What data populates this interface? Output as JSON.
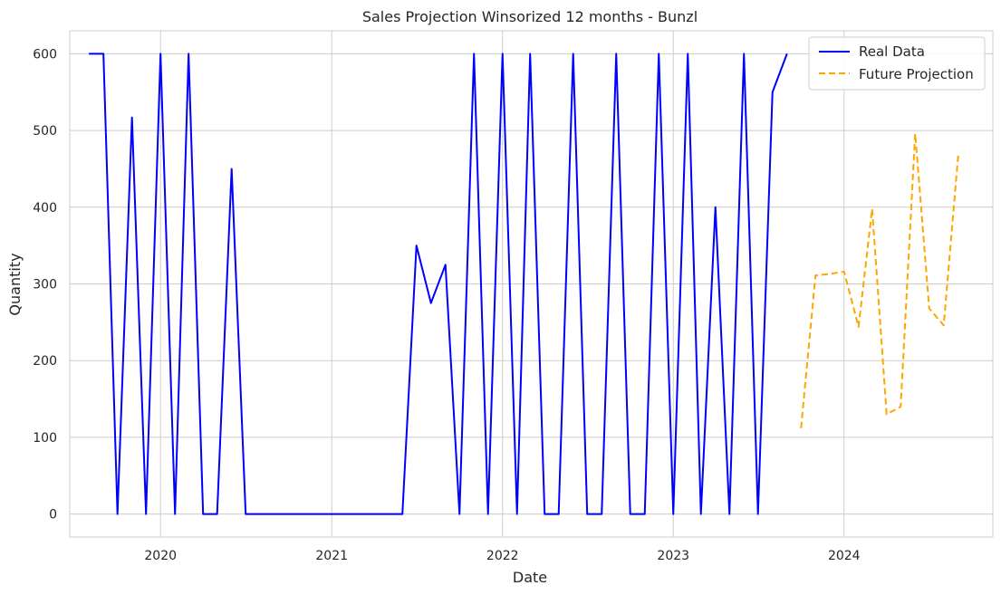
{
  "chart_data": {
    "type": "line",
    "title": "Sales Projection Winsorized 12 months - Bunzl",
    "xlabel": "Date",
    "ylabel": "Quantity",
    "xlim": [
      "2019-06-21",
      "2024-11-14"
    ],
    "ylim": [
      -30,
      630
    ],
    "x_ticks": [
      "2020-01-01",
      "2021-01-01",
      "2022-01-01",
      "2023-01-01",
      "2024-01-01"
    ],
    "x_tick_labels": [
      "2020",
      "2021",
      "2022",
      "2023",
      "2024"
    ],
    "y_ticks": [
      0,
      100,
      200,
      300,
      400,
      500,
      600
    ],
    "y_tick_labels": [
      "0",
      "100",
      "200",
      "300",
      "400",
      "500",
      "600"
    ],
    "grid": true,
    "legend_position": "top-right",
    "series": [
      {
        "name": "Real Data",
        "color": "#0000ff",
        "style": "solid",
        "points": [
          [
            "2019-08-01",
            600
          ],
          [
            "2019-09-01",
            600
          ],
          [
            "2019-10-01",
            0
          ],
          [
            "2019-11-01",
            517
          ],
          [
            "2019-12-01",
            0
          ],
          [
            "2020-01-01",
            600
          ],
          [
            "2020-02-01",
            0
          ],
          [
            "2020-03-01",
            600
          ],
          [
            "2020-04-01",
            0
          ],
          [
            "2020-05-01",
            0
          ],
          [
            "2020-06-01",
            450
          ],
          [
            "2020-07-01",
            0
          ],
          [
            "2020-08-01",
            0
          ],
          [
            "2020-09-01",
            0
          ],
          [
            "2020-10-01",
            0
          ],
          [
            "2020-11-01",
            0
          ],
          [
            "2020-12-01",
            0
          ],
          [
            "2021-01-01",
            0
          ],
          [
            "2021-02-01",
            0
          ],
          [
            "2021-03-01",
            0
          ],
          [
            "2021-04-01",
            0
          ],
          [
            "2021-05-01",
            0
          ],
          [
            "2021-06-01",
            0
          ],
          [
            "2021-07-01",
            350
          ],
          [
            "2021-08-01",
            275
          ],
          [
            "2021-09-01",
            325
          ],
          [
            "2021-10-01",
            0
          ],
          [
            "2021-11-01",
            600
          ],
          [
            "2021-12-01",
            0
          ],
          [
            "2022-01-01",
            600
          ],
          [
            "2022-02-01",
            0
          ],
          [
            "2022-03-01",
            600
          ],
          [
            "2022-04-01",
            0
          ],
          [
            "2022-05-01",
            0
          ],
          [
            "2022-06-01",
            600
          ],
          [
            "2022-07-01",
            0
          ],
          [
            "2022-08-01",
            0
          ],
          [
            "2022-09-01",
            600
          ],
          [
            "2022-10-01",
            0
          ],
          [
            "2022-11-01",
            0
          ],
          [
            "2022-12-01",
            600
          ],
          [
            "2023-01-01",
            0
          ],
          [
            "2023-02-01",
            600
          ],
          [
            "2023-03-01",
            0
          ],
          [
            "2023-04-01",
            400
          ],
          [
            "2023-05-01",
            0
          ],
          [
            "2023-06-01",
            600
          ],
          [
            "2023-07-01",
            0
          ],
          [
            "2023-08-01",
            550
          ],
          [
            "2023-09-01",
            600
          ]
        ]
      },
      {
        "name": "Future Projection",
        "color": "#ffa500",
        "style": "dashed",
        "points": [
          [
            "2023-10-01",
            112
          ],
          [
            "2023-11-01",
            311
          ],
          [
            "2023-12-01",
            313
          ],
          [
            "2024-01-01",
            316
          ],
          [
            "2024-02-01",
            244
          ],
          [
            "2024-03-01",
            398
          ],
          [
            "2024-04-01",
            130
          ],
          [
            "2024-05-01",
            140
          ],
          [
            "2024-06-01",
            496
          ],
          [
            "2024-07-01",
            268
          ],
          [
            "2024-08-01",
            246
          ],
          [
            "2024-09-01",
            468
          ]
        ]
      }
    ]
  }
}
